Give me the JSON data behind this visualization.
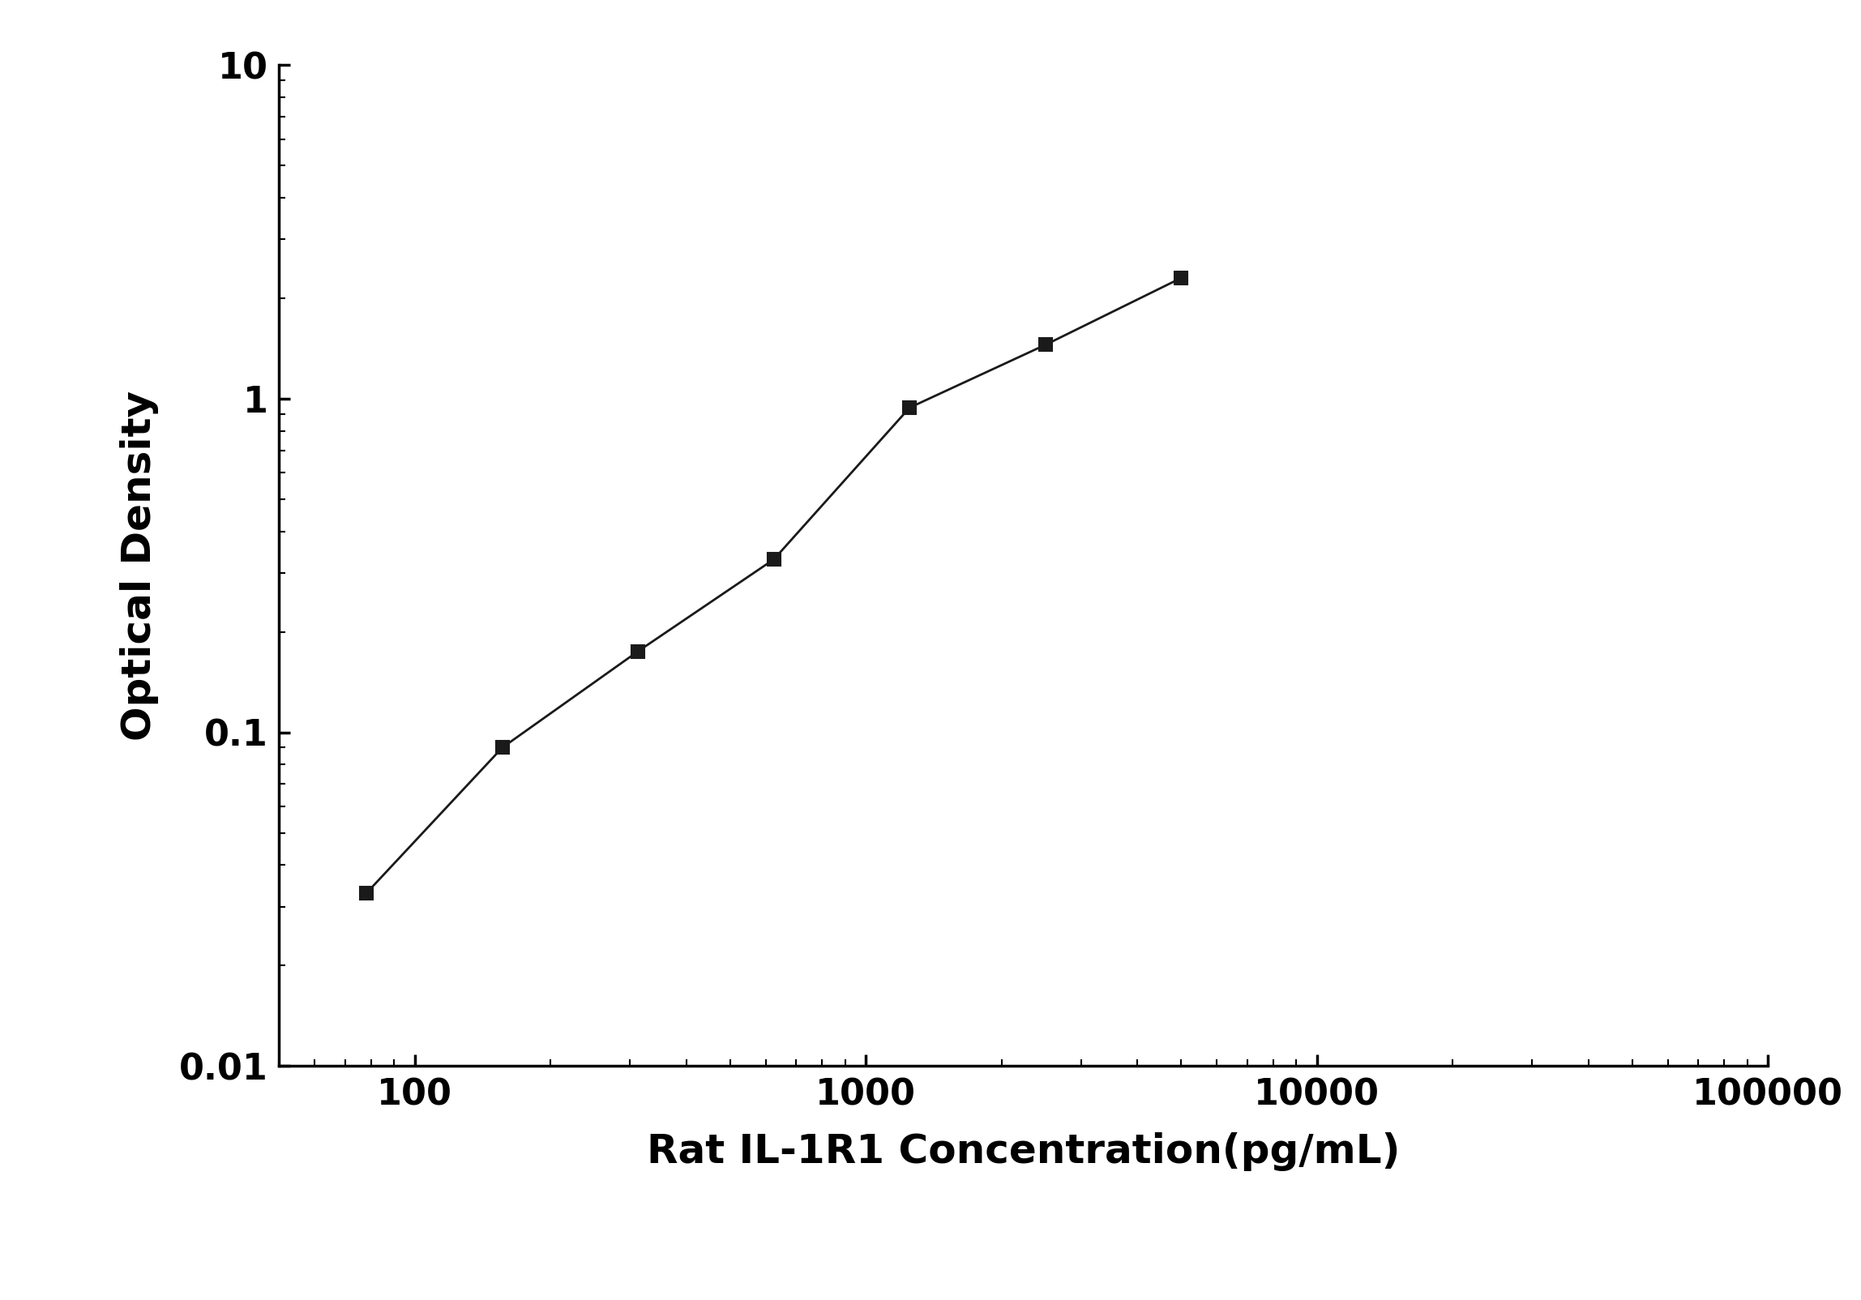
{
  "x": [
    78.125,
    156.25,
    312.5,
    625,
    1250,
    2500,
    5000
  ],
  "y": [
    0.033,
    0.09,
    0.175,
    0.33,
    0.94,
    1.45,
    2.3
  ],
  "xlabel": "Rat IL-1R1 Concentration(pg/mL)",
  "ylabel": "Optical Density",
  "xlim": [
    50,
    100000
  ],
  "ylim": [
    0.01,
    10
  ],
  "line_color": "#1a1a1a",
  "marker": "s",
  "marker_color": "#1a1a1a",
  "marker_size": 12,
  "linewidth": 2.0,
  "xlabel_fontsize": 36,
  "ylabel_fontsize": 36,
  "tick_fontsize": 32,
  "background_color": "#ffffff",
  "spine_linewidth": 2.5,
  "x_tick_labels": [
    "100",
    "1000",
    "10000",
    "100000"
  ],
  "x_tick_values": [
    100,
    1000,
    10000,
    100000
  ],
  "y_tick_labels": [
    "0.01",
    "0.1",
    "1",
    "10"
  ],
  "y_tick_values": [
    0.01,
    0.1,
    1,
    10
  ]
}
